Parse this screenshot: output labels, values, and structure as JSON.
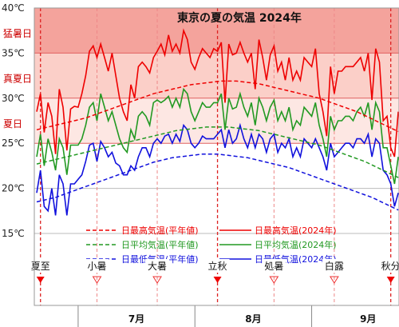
{
  "chart_data": {
    "type": "line",
    "title": "東京の夏の気温 2024年",
    "start_date": "2024-06-20",
    "ylim": [
      12,
      40
    ],
    "yticks": [
      {
        "value": 40,
        "label": "40℃"
      },
      {
        "value": 35,
        "label": "35℃"
      },
      {
        "value": 30,
        "label": "30℃"
      },
      {
        "value": 25,
        "label": "25℃"
      },
      {
        "value": 20,
        "label": "20℃"
      },
      {
        "value": 15,
        "label": "15℃"
      }
    ],
    "bands": [
      {
        "from": 35,
        "to": 40,
        "label": "猛暑日",
        "color": "#f4a39c"
      },
      {
        "from": 30,
        "to": 35,
        "label": "真夏日",
        "color": "#fbcfc8"
      },
      {
        "from": 25,
        "to": 30,
        "label": "夏日",
        "color": "#fde7e3"
      }
    ],
    "months": [
      {
        "label": "7月",
        "date": "2024-07-01"
      },
      {
        "label": "8月",
        "date": "2024-08-01"
      },
      {
        "label": "9月",
        "date": "2024-09-01"
      }
    ],
    "solar_terms": [
      {
        "label": "夏至",
        "date": "2024-06-21",
        "major": true
      },
      {
        "label": "小暑",
        "date": "2024-07-06",
        "major": false
      },
      {
        "label": "大暑",
        "date": "2024-07-22",
        "major": false
      },
      {
        "label": "立秋",
        "date": "2024-08-07",
        "major": true
      },
      {
        "label": "処暑",
        "date": "2024-08-22",
        "major": false
      },
      {
        "label": "白露",
        "date": "2024-09-07",
        "major": false
      },
      {
        "label": "秋分",
        "date": "2024-09-22",
        "major": true
      }
    ],
    "series": [
      {
        "name": "日最高気温(2024年)",
        "kind": "actual",
        "color": "#ee0000",
        "values": [
          28.5,
          30.5,
          26.2,
          29.5,
          28.0,
          23.8,
          31.0,
          29.0,
          24.2,
          28.8,
          29.1,
          29.0,
          30.5,
          32.5,
          35.2,
          35.8,
          34.5,
          36.0,
          34.5,
          33.0,
          35.0,
          32.5,
          30.0,
          28.5,
          27.5,
          31.5,
          30.0,
          33.5,
          34.0,
          33.5,
          32.8,
          34.5,
          35.2,
          36.0,
          34.8,
          37.0,
          35.2,
          36.0,
          35.0,
          37.5,
          36.5,
          34.0,
          33.2,
          34.5,
          35.5,
          35.0,
          34.5,
          35.5,
          35.2,
          36.2,
          29.5,
          36.0,
          34.8,
          35.0,
          36.2,
          35.0,
          34.0,
          35.0,
          31.0,
          36.5,
          34.5,
          32.0,
          34.8,
          35.8,
          33.0,
          34.0,
          32.0,
          34.5,
          32.0,
          33.0,
          32.0,
          34.5,
          34.0,
          33.5,
          35.5,
          30.5,
          28.5,
          25.8,
          33.5,
          30.5,
          33.0,
          33.0,
          33.5,
          33.5,
          33.5,
          34.0,
          34.5,
          33.0,
          35.0,
          29.8,
          35.5,
          34.0,
          27.5,
          28.0,
          24.5,
          23.5,
          28.5
        ]
      },
      {
        "name": "日平均気温(2024年)",
        "kind": "actual",
        "color": "#229922",
        "values": [
          23.5,
          26.0,
          22.5,
          25.5,
          24.0,
          22.0,
          25.5,
          24.5,
          21.5,
          24.8,
          24.8,
          24.8,
          25.5,
          27.0,
          29.0,
          29.5,
          27.5,
          30.5,
          29.0,
          27.5,
          28.5,
          27.0,
          25.5,
          24.5,
          24.0,
          26.5,
          25.5,
          28.0,
          28.5,
          28.0,
          27.0,
          29.5,
          29.8,
          29.5,
          29.8,
          30.2,
          29.0,
          30.0,
          29.0,
          31.0,
          30.5,
          28.5,
          27.5,
          28.5,
          29.5,
          29.0,
          29.0,
          29.5,
          29.5,
          30.5,
          26.5,
          30.0,
          28.8,
          29.0,
          30.5,
          29.0,
          28.0,
          29.5,
          27.0,
          30.0,
          29.0,
          27.5,
          29.0,
          29.8,
          27.5,
          28.5,
          27.5,
          29.0,
          26.5,
          27.5,
          27.0,
          29.0,
          28.5,
          28.0,
          29.5,
          27.0,
          25.5,
          23.5,
          28.0,
          26.5,
          27.5,
          27.5,
          28.0,
          28.0,
          27.5,
          28.5,
          29.0,
          28.0,
          29.5,
          26.5,
          29.5,
          28.5,
          24.5,
          24.5,
          22.5,
          20.5,
          23.5
        ]
      },
      {
        "name": "日最低気温(2024年)",
        "kind": "actual",
        "color": "#1111dd",
        "values": [
          19.5,
          22.0,
          18.0,
          17.5,
          20.0,
          17.0,
          21.5,
          20.5,
          17.0,
          20.5,
          20.5,
          21.0,
          21.5,
          23.0,
          24.8,
          25.0,
          23.0,
          25.2,
          24.5,
          23.5,
          24.0,
          22.8,
          22.5,
          21.5,
          21.5,
          22.5,
          22.0,
          23.5,
          24.5,
          24.5,
          23.5,
          25.0,
          25.5,
          25.0,
          25.8,
          26.0,
          25.0,
          26.0,
          25.2,
          27.0,
          26.5,
          25.0,
          24.5,
          25.0,
          25.8,
          25.5,
          25.5,
          25.5,
          26.0,
          26.5,
          24.5,
          26.5,
          25.0,
          25.5,
          27.0,
          25.5,
          24.5,
          26.0,
          24.5,
          26.0,
          25.5,
          24.0,
          25.5,
          26.0,
          24.0,
          25.0,
          24.5,
          25.5,
          23.5,
          24.5,
          23.5,
          25.5,
          25.0,
          24.5,
          25.5,
          24.5,
          23.5,
          22.0,
          25.0,
          23.5,
          24.0,
          24.5,
          25.0,
          25.0,
          24.5,
          25.5,
          25.5,
          25.0,
          26.0,
          23.5,
          25.5,
          25.0,
          22.0,
          21.5,
          20.5,
          18.0,
          19.5
        ]
      },
      {
        "name": "日最高気温(平年値)",
        "kind": "normal",
        "color": "#ee0000",
        "values": [
          26.5,
          26.6,
          26.7,
          26.8,
          26.9,
          27.0,
          27.1,
          27.2,
          27.3,
          27.4,
          27.5,
          27.6,
          27.7,
          27.8,
          27.95,
          28.1,
          28.25,
          28.4,
          28.55,
          28.7,
          28.85,
          29.0,
          29.15,
          29.3,
          29.45,
          29.6,
          29.75,
          29.9,
          30.05,
          30.2,
          30.35,
          30.5,
          30.6,
          30.7,
          30.8,
          30.9,
          31.0,
          31.1,
          31.2,
          31.3,
          31.4,
          31.5,
          31.55,
          31.6,
          31.65,
          31.7,
          31.75,
          31.8,
          31.85,
          31.9,
          31.9,
          31.9,
          31.9,
          31.9,
          31.85,
          31.8,
          31.75,
          31.7,
          31.65,
          31.6,
          31.5,
          31.4,
          31.3,
          31.2,
          31.1,
          31.0,
          30.9,
          30.8,
          30.7,
          30.6,
          30.5,
          30.4,
          30.3,
          30.2,
          30.1,
          30.0,
          29.85,
          29.7,
          29.55,
          29.4,
          29.25,
          29.1,
          28.95,
          28.8,
          28.65,
          28.5,
          28.3,
          28.1,
          27.9,
          27.7,
          27.5,
          27.3,
          27.1,
          26.9,
          26.7,
          26.5,
          26.3
        ]
      },
      {
        "name": "日平均気温(平年値)",
        "kind": "normal",
        "color": "#229922",
        "values": [
          22.7,
          22.8,
          22.9,
          23.0,
          23.1,
          23.2,
          23.3,
          23.4,
          23.5,
          23.6,
          23.7,
          23.8,
          23.9,
          24.0,
          24.1,
          24.2,
          24.3,
          24.4,
          24.5,
          24.6,
          24.7,
          24.8,
          24.9,
          25.0,
          25.1,
          25.2,
          25.3,
          25.4,
          25.5,
          25.6,
          25.7,
          25.8,
          25.9,
          26.0,
          26.1,
          26.2,
          26.3,
          26.4,
          26.45,
          26.5,
          26.55,
          26.6,
          26.65,
          26.7,
          26.75,
          26.8,
          26.8,
          26.8,
          26.8,
          26.8,
          26.8,
          26.8,
          26.75,
          26.7,
          26.65,
          26.6,
          26.55,
          26.5,
          26.45,
          26.4,
          26.3,
          26.2,
          26.1,
          26.0,
          25.9,
          25.8,
          25.7,
          25.6,
          25.5,
          25.4,
          25.3,
          25.2,
          25.1,
          25.0,
          24.9,
          24.8,
          24.65,
          24.5,
          24.35,
          24.2,
          24.05,
          23.9,
          23.75,
          23.6,
          23.45,
          23.3,
          23.15,
          23.0,
          22.8,
          22.6,
          22.4,
          22.2,
          22.0,
          21.8,
          21.6,
          21.4,
          21.2
        ]
      },
      {
        "name": "日最低気温(平年値)",
        "kind": "normal",
        "color": "#1111dd",
        "values": [
          18.5,
          18.6,
          18.7,
          18.8,
          18.9,
          19.0,
          19.15,
          19.3,
          19.45,
          19.6,
          19.75,
          19.9,
          20.05,
          20.2,
          20.35,
          20.5,
          20.65,
          20.8,
          20.95,
          21.1,
          21.25,
          21.4,
          21.55,
          21.7,
          21.85,
          22.0,
          22.15,
          22.3,
          22.45,
          22.6,
          22.75,
          22.9,
          23.0,
          23.1,
          23.2,
          23.3,
          23.4,
          23.45,
          23.5,
          23.55,
          23.6,
          23.65,
          23.7,
          23.75,
          23.8,
          23.8,
          23.8,
          23.8,
          23.8,
          23.75,
          23.7,
          23.65,
          23.6,
          23.55,
          23.5,
          23.45,
          23.4,
          23.3,
          23.2,
          23.1,
          23.0,
          22.9,
          22.8,
          22.7,
          22.6,
          22.5,
          22.4,
          22.3,
          22.15,
          22.0,
          21.85,
          21.7,
          21.55,
          21.4,
          21.25,
          21.1,
          20.95,
          20.8,
          20.65,
          20.5,
          20.35,
          20.2,
          20.05,
          19.9,
          19.75,
          19.6,
          19.45,
          19.3,
          19.15,
          19.0,
          18.8,
          18.6,
          18.4,
          18.2,
          18.0,
          17.8,
          17.6
        ]
      }
    ],
    "legend": {
      "position": "bottom",
      "normal": [
        "日最高気温(平年値)",
        "日平均気温(平年値)",
        "日最低気温(平年値)"
      ],
      "actual": [
        "日最高気温(2024年)",
        "日平均気温(2024年)",
        "日最低気温(2024年)"
      ]
    }
  }
}
